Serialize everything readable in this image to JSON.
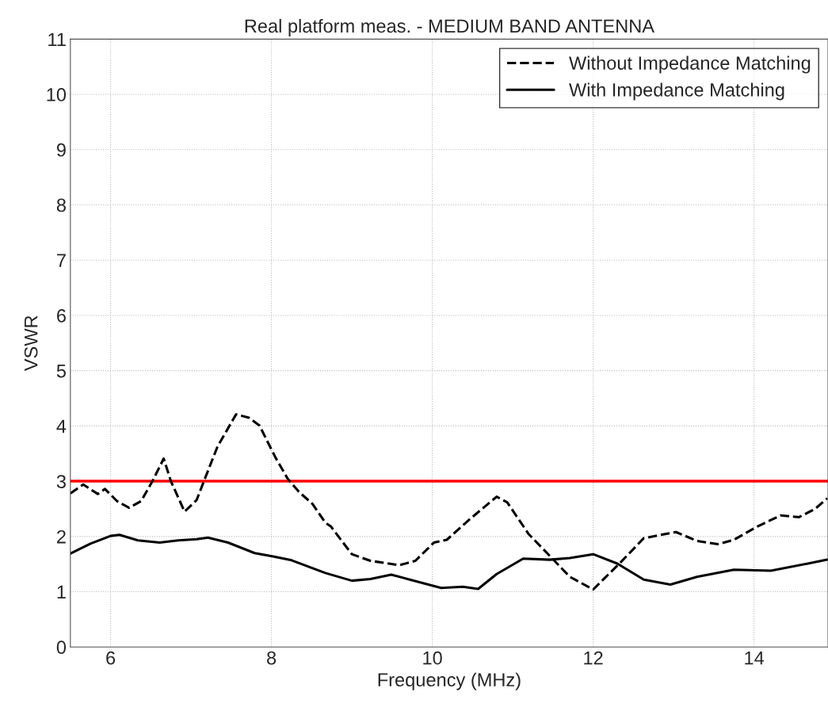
{
  "chart_data": {
    "type": "line",
    "title": "Real platform meas. - MEDIUM BAND ANTENNA",
    "xlabel": "Frequency (MHz)",
    "ylabel": "VSWR",
    "xlim": [
      5.5,
      14.92
    ],
    "xticks": [
      6,
      8,
      10,
      12,
      14
    ],
    "ylim": [
      0,
      11
    ],
    "yticks": [
      0,
      1,
      2,
      3,
      4,
      5,
      6,
      7,
      8,
      9,
      10,
      11
    ],
    "grid": true,
    "legend": "top right",
    "ref_lines": [
      {
        "axis": "y",
        "value": 3,
        "color": "#ff0000",
        "line_style": "solid"
      }
    ],
    "series": [
      {
        "name": "Without Impedance Matching",
        "color": "#000000",
        "line_style": "dashed",
        "x": [
          5.5,
          5.66,
          5.84,
          5.93,
          6.08,
          6.23,
          6.38,
          6.52,
          6.66,
          6.75,
          6.92,
          7.07,
          7.16,
          7.33,
          7.56,
          7.72,
          7.85,
          8.05,
          8.2,
          8.34,
          8.51,
          8.67,
          8.74,
          9.0,
          9.23,
          9.59,
          9.79,
          10.02,
          10.18,
          10.48,
          10.8,
          10.93,
          11.2,
          11.46,
          11.71,
          12.0,
          12.34,
          12.63,
          13.03,
          13.29,
          13.55,
          13.75,
          14.04,
          14.33,
          14.56,
          14.76,
          14.91
        ],
        "values": [
          2.78,
          2.94,
          2.77,
          2.86,
          2.64,
          2.52,
          2.64,
          3.0,
          3.41,
          3.0,
          2.45,
          2.66,
          3.0,
          3.63,
          4.21,
          4.15,
          4.01,
          3.43,
          3.05,
          2.81,
          2.59,
          2.25,
          2.18,
          1.68,
          1.56,
          1.48,
          1.56,
          1.89,
          1.94,
          2.33,
          2.72,
          2.62,
          2.04,
          1.65,
          1.27,
          1.04,
          1.53,
          1.97,
          2.08,
          1.92,
          1.86,
          1.94,
          2.18,
          2.38,
          2.35,
          2.5,
          2.69
        ]
      },
      {
        "name": "With Impedance Matching",
        "color": "#000000",
        "line_style": "solid",
        "x": [
          5.5,
          5.75,
          6.0,
          6.11,
          6.34,
          6.61,
          6.84,
          7.07,
          7.21,
          7.46,
          7.79,
          8.02,
          8.25,
          8.67,
          9.0,
          9.23,
          9.49,
          9.72,
          10.11,
          10.38,
          10.57,
          10.8,
          11.13,
          11.46,
          11.71,
          12.0,
          12.3,
          12.63,
          12.96,
          13.29,
          13.75,
          14.21,
          14.67,
          14.91
        ],
        "values": [
          1.69,
          1.87,
          2.01,
          2.03,
          1.93,
          1.89,
          1.93,
          1.95,
          1.98,
          1.89,
          1.7,
          1.64,
          1.57,
          1.34,
          1.2,
          1.23,
          1.31,
          1.22,
          1.07,
          1.09,
          1.05,
          1.32,
          1.6,
          1.58,
          1.61,
          1.68,
          1.51,
          1.22,
          1.13,
          1.27,
          1.4,
          1.38,
          1.51,
          1.58
        ]
      }
    ]
  }
}
